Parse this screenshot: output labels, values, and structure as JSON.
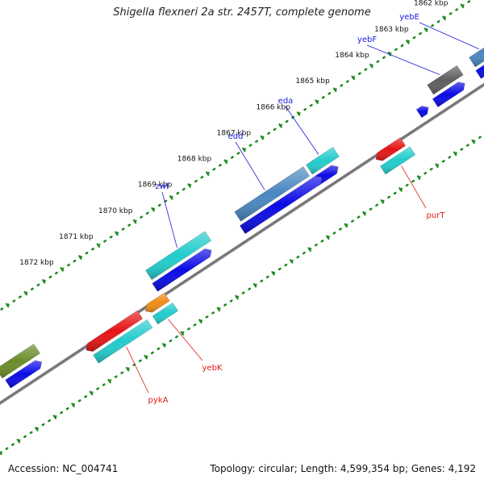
{
  "title": "Shigella flexneri 2a str. 2457T, complete genome",
  "footer": {
    "accession": "Accession: NC_004741",
    "summary": "Topology: circular; Length: 4,599,354 bp; Genes: 4,192"
  },
  "colors": {
    "backbone": "#777777",
    "tick": "#1a8a1a",
    "tick_label": "#111111",
    "forward_label": "#1a1adc",
    "reverse_label": "#dc1a1a",
    "cds_forward": "#0a0ae6",
    "cds_reverse": "#e61414"
  },
  "ticks": [
    {
      "label": "1862 kbp"
    },
    {
      "label": "1863 kbp"
    },
    {
      "label": "1864 kbp"
    },
    {
      "label": "1865 kbp"
    },
    {
      "label": "1866 kbp"
    },
    {
      "label": "1867 kbp"
    },
    {
      "label": "1868 kbp"
    },
    {
      "label": "1869 kbp"
    },
    {
      "label": "1870 kbp"
    },
    {
      "label": "1871 kbp"
    },
    {
      "label": "1872 kbp"
    }
  ],
  "genes_forward": [
    {
      "name": "yebE",
      "color": "#4a86c0"
    },
    {
      "name": "yebF",
      "color": "#5e5e5e"
    },
    {
      "name": "eda",
      "color": "#22cccc"
    },
    {
      "name": "edd",
      "color": "#4a86c0"
    },
    {
      "name": "zwf",
      "color": "#22cccc"
    }
  ],
  "genes_reverse": [
    {
      "name": "purT",
      "color": "#e61414"
    },
    {
      "name": "yebK",
      "color": "#f08c14"
    },
    {
      "name": "pykA",
      "color": "#e61414"
    }
  ]
}
